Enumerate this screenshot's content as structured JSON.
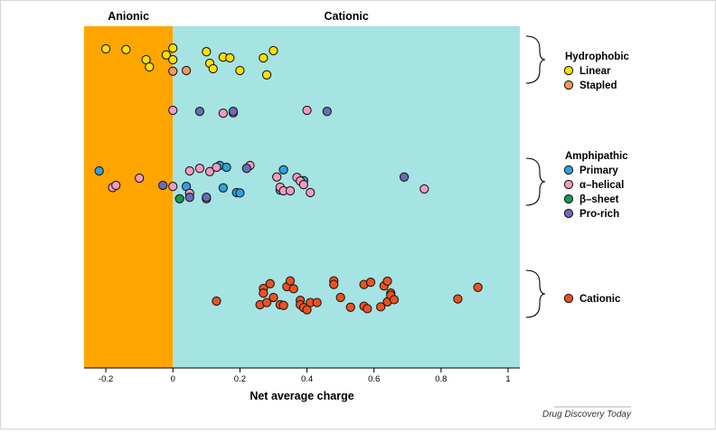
{
  "chart_data": {
    "type": "scatter",
    "title": "",
    "xlabel": "Net average charge",
    "ylabel": "",
    "xlim": [
      -0.265,
      1.035
    ],
    "x_ticks": [
      -0.2,
      0,
      0.2,
      0.4,
      0.6,
      0.8,
      1
    ],
    "x_tick_labels": [
      "-0.2",
      "0",
      "0.2",
      "0.4",
      "0.6",
      "0.8",
      "1"
    ],
    "grid": false,
    "legend_position": "right",
    "regions": [
      {
        "label": "Anionic",
        "from": -0.265,
        "to": 0,
        "color": "#FFA500"
      },
      {
        "label": "Cationic",
        "from": 0,
        "to": 1.035,
        "color": "#A6E3E3"
      }
    ],
    "groups": [
      {
        "label": "Hydrophobic",
        "band": [
          0,
          1
        ],
        "legend_y": 0
      },
      {
        "label": "Amphipathic",
        "band": [
          2,
          3
        ],
        "legend_y": 2.3
      },
      {
        "label": "",
        "band": [
          4,
          5
        ],
        "legend_y": 4.6
      }
    ],
    "series": [
      {
        "name": "Linear",
        "color": "#FFE100",
        "points": [
          [
            -0.2,
            0.2
          ],
          [
            -0.14,
            0.22
          ],
          [
            -0.08,
            0.5
          ],
          [
            -0.07,
            0.7
          ],
          [
            -0.02,
            0.37
          ],
          [
            0,
            0.18
          ],
          [
            0,
            0.5
          ],
          [
            0.1,
            0.28
          ],
          [
            0.11,
            0.6
          ],
          [
            0.12,
            0.75
          ],
          [
            0.15,
            0.43
          ],
          [
            0.17,
            0.45
          ],
          [
            0.2,
            0.8
          ],
          [
            0.27,
            0.45
          ],
          [
            0.3,
            0.25
          ],
          [
            0.28,
            0.92
          ]
        ]
      },
      {
        "name": "Stapled",
        "color": "#F6975A",
        "points": [
          [
            0,
            0.82
          ],
          [
            0.04,
            0.8
          ]
        ]
      },
      {
        "name": "Primary",
        "color": "#2BA3E0",
        "points": [
          [
            -0.22,
            2.2
          ],
          [
            0.04,
            2.63
          ],
          [
            0.14,
            2.05
          ],
          [
            0.15,
            2.67
          ],
          [
            0.16,
            2.1
          ],
          [
            0.19,
            2.8
          ],
          [
            0.2,
            2.81
          ],
          [
            0.33,
            2.17
          ],
          [
            0.32,
            2.73
          ],
          [
            0.39,
            2.47
          ]
        ]
      },
      {
        "name": "α–helical",
        "color": "#F49AC1",
        "points": [
          [
            -0.18,
            2.66
          ],
          [
            -0.17,
            2.6
          ],
          [
            -0.1,
            2.4
          ],
          [
            0,
            2.63
          ],
          [
            0,
            1.9
          ],
          [
            0.05,
            2.2
          ],
          [
            0.05,
            2.82
          ],
          [
            0.08,
            2.13
          ],
          [
            0.1,
            2.97
          ],
          [
            0.11,
            2.22
          ],
          [
            0.13,
            2.1
          ],
          [
            0.15,
            1.98
          ],
          [
            0.18,
            1.97
          ],
          [
            0.23,
            2.05
          ],
          [
            0.31,
            2.37
          ],
          [
            0.32,
            2.65
          ],
          [
            0.33,
            2.75
          ],
          [
            0.35,
            2.75
          ],
          [
            0.37,
            2.38
          ],
          [
            0.38,
            2.48
          ],
          [
            0.39,
            2.58
          ],
          [
            0.4,
            1.9
          ],
          [
            0.41,
            2.8
          ],
          [
            0.75,
            2.7
          ]
        ]
      },
      {
        "name": "β–sheet",
        "color": "#1A9A4B",
        "points": [
          [
            0.02,
            2.97
          ]
        ]
      },
      {
        "name": "Pro-rich",
        "color": "#6E6AB8",
        "points": [
          [
            -0.03,
            2.6
          ],
          [
            0.05,
            2.93
          ],
          [
            0.08,
            1.93
          ],
          [
            0.1,
            2.93
          ],
          [
            0.18,
            1.93
          ],
          [
            0.22,
            2.13
          ],
          [
            0.46,
            1.93
          ],
          [
            0.69,
            2.37
          ]
        ]
      },
      {
        "name": "Cationic",
        "color": "#F0511E",
        "points": [
          [
            0.13,
            4.7
          ],
          [
            0.26,
            4.8
          ],
          [
            0.27,
            4.35
          ],
          [
            0.27,
            4.48
          ],
          [
            0.28,
            4.74
          ],
          [
            0.29,
            4.22
          ],
          [
            0.3,
            4.6
          ],
          [
            0.32,
            4.8
          ],
          [
            0.33,
            4.82
          ],
          [
            0.34,
            4.3
          ],
          [
            0.35,
            4.14
          ],
          [
            0.36,
            4.36
          ],
          [
            0.38,
            4.68
          ],
          [
            0.38,
            4.8
          ],
          [
            0.39,
            4.88
          ],
          [
            0.4,
            4.94
          ],
          [
            0.41,
            4.74
          ],
          [
            0.43,
            4.74
          ],
          [
            0.48,
            4.14
          ],
          [
            0.48,
            4.24
          ],
          [
            0.5,
            4.6
          ],
          [
            0.53,
            4.87
          ],
          [
            0.57,
            4.24
          ],
          [
            0.57,
            4.84
          ],
          [
            0.58,
            4.91
          ],
          [
            0.59,
            4.18
          ],
          [
            0.62,
            4.86
          ],
          [
            0.63,
            4.28
          ],
          [
            0.64,
            4.15
          ],
          [
            0.64,
            4.72
          ],
          [
            0.65,
            4.48
          ],
          [
            0.65,
            4.54
          ],
          [
            0.66,
            4.66
          ],
          [
            0.85,
            4.64
          ],
          [
            0.91,
            4.32
          ]
        ]
      }
    ],
    "legend": [
      {
        "group": "Hydrophobic",
        "items": [
          "Linear",
          "Stapled"
        ]
      },
      {
        "group": "Amphipathic",
        "items": [
          "Primary",
          "α–helical",
          "β–sheet",
          "Pro-rich"
        ]
      },
      {
        "group": "",
        "items": [
          "Cationic"
        ]
      }
    ],
    "source_credit": "Drug Discovery Today"
  }
}
